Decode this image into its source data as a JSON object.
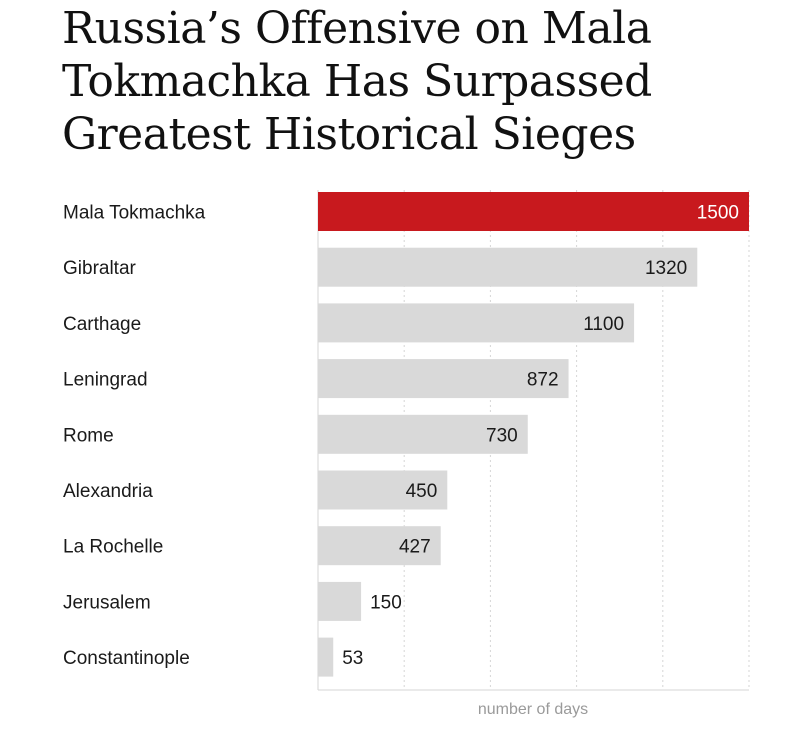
{
  "chart_data": {
    "type": "bar",
    "orientation": "horizontal",
    "title": "Russia’s Offensive on Mala Tokmachka Has Surpassed Greatest Historical Sieges",
    "xlabel": "number of days",
    "ylabel": "",
    "categories": [
      "Mala Tokmachka",
      "Gibraltar",
      "Carthage",
      "Leningrad",
      "Rome",
      "Alexandria",
      "La Rochelle",
      "Jerusalem",
      "Constantinople"
    ],
    "values": [
      1500,
      1320,
      1100,
      872,
      730,
      450,
      427,
      150,
      53
    ],
    "value_labels": [
      "1500",
      "1320",
      "1100",
      "872",
      "730",
      "450",
      "427",
      "150",
      "53"
    ],
    "xlim": [
      0,
      1500
    ],
    "grid": true,
    "legend": "none",
    "highlight_index": 0,
    "colors": {
      "highlight": "#c8191e",
      "bar": "#d9d9d9",
      "grid": "#d6d6d6",
      "axis_text": "#9a9a9a",
      "label_text": "#1a1a1a",
      "highlight_text": "#ffffff"
    }
  }
}
